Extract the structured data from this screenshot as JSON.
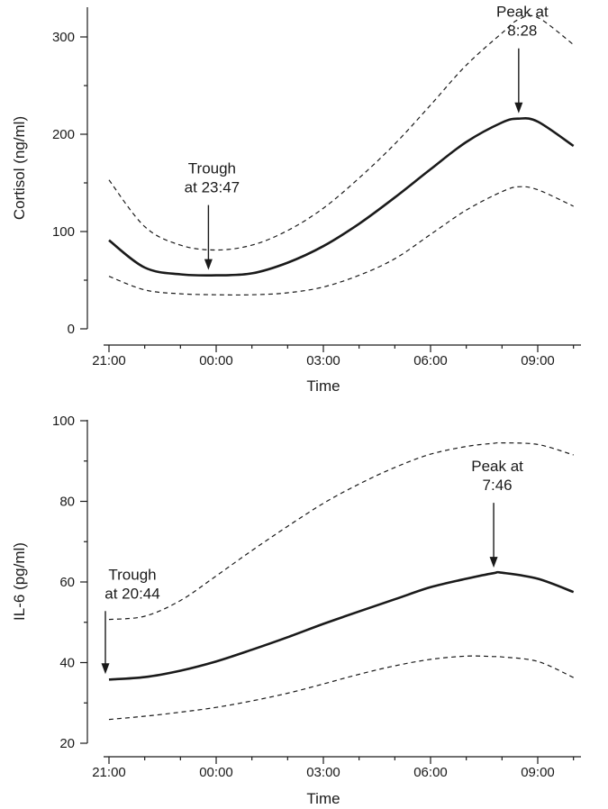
{
  "chart_data": [
    {
      "type": "line",
      "xlabel": "Time",
      "ylabel": "Cortisol (ng/ml)",
      "x_ticks": [
        "21:00",
        "00:00",
        "03:00",
        "06:00",
        "09:00"
      ],
      "xlim": [
        "21:00",
        "10:00 (+1 day)"
      ],
      "ylim": [
        0,
        330
      ],
      "y_ticks": [
        0,
        100,
        200,
        300
      ],
      "y_minor_ticks": [
        50,
        150,
        250
      ],
      "grid": false,
      "legend": "none",
      "x": [
        "21:00",
        "22:00",
        "23:00",
        "00:00",
        "01:00",
        "02:00",
        "03:00",
        "04:00",
        "05:00",
        "06:00",
        "07:00",
        "08:00",
        "08:28",
        "09:00",
        "10:00"
      ],
      "series": [
        {
          "style": "solid",
          "values": [
            91,
            63,
            56,
            55,
            57,
            68,
            85,
            108,
            135,
            164,
            192,
            212,
            216,
            213,
            188
          ]
        },
        {
          "style": "dashed",
          "values": [
            153,
            105,
            86,
            81,
            86,
            101,
            124,
            155,
            190,
            230,
            271,
            304,
            318,
            320,
            292
          ]
        },
        {
          "style": "dashed",
          "values": [
            54,
            40,
            36,
            35,
            35,
            37,
            43,
            55,
            72,
            97,
            122,
            141,
            146,
            143,
            126
          ]
        }
      ],
      "annotations": [
        {
          "lines": [
            "Trough",
            "at 23:47"
          ],
          "x": "23:47",
          "y": 55
        },
        {
          "lines": [
            "Peak at",
            "8:28"
          ],
          "x": "08:28",
          "y": 216
        }
      ]
    },
    {
      "type": "line",
      "xlabel": "Time",
      "ylabel": "IL-6 (pg/ml)",
      "x_ticks": [
        "21:00",
        "00:00",
        "03:00",
        "06:00",
        "09:00"
      ],
      "xlim": [
        "21:00",
        "10:00 (+1 day)"
      ],
      "ylim": [
        20,
        100
      ],
      "y_ticks": [
        20,
        40,
        60,
        80,
        100
      ],
      "y_minor_ticks": [
        30,
        50,
        70,
        90
      ],
      "grid": false,
      "legend": "none",
      "x": [
        "21:00",
        "22:00",
        "23:00",
        "00:00",
        "01:00",
        "02:00",
        "03:00",
        "04:00",
        "05:00",
        "06:00",
        "07:00",
        "07:46",
        "08:00",
        "09:00",
        "10:00"
      ],
      "series": [
        {
          "style": "solid",
          "values": [
            35.8,
            36.4,
            38.0,
            40.3,
            43.2,
            46.3,
            49.6,
            52.7,
            55.7,
            58.7,
            60.8,
            62.2,
            62.3,
            60.8,
            57.5
          ]
        },
        {
          "style": "dashed",
          "values": [
            50.7,
            51.5,
            55.4,
            61.5,
            67.8,
            73.8,
            79.5,
            84.3,
            88.4,
            91.7,
            93.6,
            94.4,
            94.5,
            94.1,
            91.5
          ]
        },
        {
          "style": "dashed",
          "values": [
            25.9,
            26.7,
            27.7,
            28.9,
            30.5,
            32.4,
            34.7,
            37.1,
            39.2,
            40.8,
            41.6,
            41.5,
            41.4,
            40.3,
            36.3
          ]
        }
      ],
      "annotations": [
        {
          "lines": [
            "Trough",
            "at 20:44"
          ],
          "x": "20:44",
          "y": 35.8
        },
        {
          "lines": [
            "Peak at",
            "7:46"
          ],
          "x": "07:46",
          "y": 62.2
        }
      ]
    }
  ]
}
